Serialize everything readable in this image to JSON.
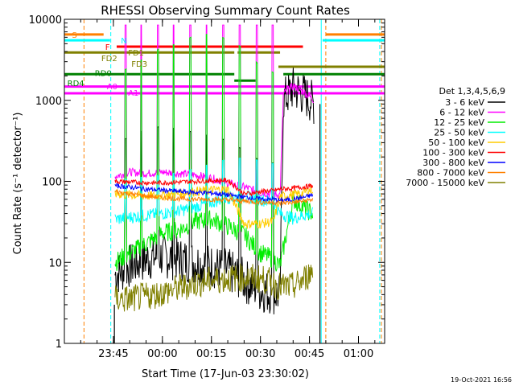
{
  "chart_data": {
    "type": "line",
    "title": "RHESSI Observing Summary Count Rates",
    "xlabel": "Start Time (17-Jun-03 23:30:02)",
    "ylabel": "Count Rate (s⁻¹ detector⁻¹)",
    "y_scale": "log",
    "x_unit": "minutes after 23:30:02",
    "xlim": [
      0,
      98
    ],
    "ylim": [
      1,
      10000
    ],
    "x_ticks": [
      {
        "t": 15,
        "label": "23:45"
      },
      {
        "t": 30,
        "label": "00:00"
      },
      {
        "t": 45,
        "label": "00:15"
      },
      {
        "t": 60,
        "label": "00:30"
      },
      {
        "t": 75,
        "label": "00:45"
      },
      {
        "t": 90,
        "label": "01:00"
      }
    ],
    "y_ticks": [
      {
        "v": 1,
        "label": "1"
      },
      {
        "v": 10,
        "label": "10"
      },
      {
        "v": 100,
        "label": "100"
      },
      {
        "v": 1000,
        "label": "1000"
      },
      {
        "v": 10000,
        "label": "10000"
      }
    ],
    "legend_title": "Det 1,3,4,5,6,9",
    "legend_position": "right",
    "series": [
      {
        "name": "3 - 6 keV",
        "color": "#000000",
        "x": [
          15.5,
          20,
          25,
          30,
          35,
          40,
          45,
          50,
          55,
          58,
          60,
          64,
          66,
          67,
          70,
          73,
          76.5
        ],
        "y": [
          7,
          9,
          11,
          12,
          11,
          10,
          9,
          8,
          6,
          5,
          4.5,
          4.2,
          4,
          1000,
          1400,
          1200,
          900
        ]
      },
      {
        "name": "6 - 12 keV",
        "color": "#ff00ff",
        "x": [
          15.5,
          20,
          25,
          30,
          35,
          40,
          45,
          50,
          55,
          58,
          60,
          64,
          66,
          67,
          70,
          73,
          76.5
        ],
        "y": [
          115,
          130,
          125,
          130,
          125,
          120,
          110,
          95,
          85,
          78,
          72,
          70,
          68,
          1200,
          1500,
          1300,
          1000
        ]
      },
      {
        "name": "12 - 25 keV",
        "color": "#00ee00",
        "x": [
          15.5,
          20,
          25,
          30,
          35,
          40,
          45,
          50,
          55,
          58,
          60,
          64,
          66,
          70,
          73,
          76
        ],
        "y": [
          10,
          13,
          17,
          23,
          25,
          32,
          34,
          28,
          22,
          16,
          13,
          11,
          9,
          60,
          48,
          40
        ]
      },
      {
        "name": "25 - 50 keV",
        "color": "#00ffff",
        "x": [
          15.5,
          20,
          25,
          30,
          35,
          40,
          45,
          50,
          55,
          58,
          60,
          64,
          66,
          70,
          73,
          76
        ],
        "y": [
          34,
          36,
          38,
          40,
          43,
          48,
          55,
          63,
          65,
          62,
          60,
          55,
          40,
          35,
          38,
          40
        ]
      },
      {
        "name": "50 - 100 keV",
        "color": "#ffcc00",
        "x": [
          15.5,
          20,
          25,
          30,
          35,
          40,
          45,
          50,
          55,
          58,
          60,
          64,
          66,
          70,
          73,
          76
        ],
        "y": [
          70,
          68,
          66,
          67,
          70,
          75,
          78,
          80,
          30,
          30,
          30,
          32,
          65,
          68,
          72,
          80
        ]
      },
      {
        "name": "100 - 300 keV",
        "color": "#ff0000",
        "x": [
          15.5,
          20,
          25,
          30,
          35,
          40,
          45,
          50,
          55,
          58,
          60,
          64,
          66,
          70,
          73,
          76
        ],
        "y": [
          100,
          98,
          96,
          96,
          98,
          100,
          102,
          103,
          70,
          72,
          75,
          77,
          80,
          82,
          85,
          88
        ]
      },
      {
        "name": "300 - 800 keV",
        "color": "#0000ff",
        "x": [
          15.5,
          20,
          25,
          30,
          35,
          40,
          45,
          50,
          55,
          58,
          60,
          64,
          66,
          70,
          73,
          76
        ],
        "y": [
          88,
          85,
          80,
          78,
          75,
          73,
          72,
          68,
          64,
          62,
          60,
          60,
          58,
          60,
          63,
          68
        ]
      },
      {
        "name": "800 - 7000 keV",
        "color": "#ff8000",
        "x": [
          15.5,
          20,
          25,
          30,
          35,
          40,
          45,
          50,
          55,
          58,
          60,
          64,
          66,
          70,
          73,
          76
        ],
        "y": [
          75,
          70,
          66,
          63,
          61,
          60,
          60,
          59,
          57,
          56,
          55,
          55,
          54,
          55,
          57,
          60
        ]
      },
      {
        "name": "7000 - 15000 keV",
        "color": "#808000",
        "x": [
          15.5,
          20,
          25,
          30,
          35,
          40,
          45,
          50,
          55,
          58,
          60,
          64,
          66,
          70,
          73,
          76
        ],
        "y": [
          3.5,
          3.5,
          3.8,
          4.2,
          4.8,
          5.5,
          6,
          6.3,
          6.5,
          6.4,
          6.3,
          5.5,
          5,
          5,
          6,
          8
        ]
      }
    ],
    "spike_times": [
      18.7,
      23.5,
      28.7,
      33.4,
      38.6,
      43.5,
      48.6,
      53.7,
      58.9,
      63.8
    ],
    "state_bars": [
      {
        "label": "S",
        "color": "#ff8000",
        "segments": [
          [
            0,
            12
          ],
          [
            80,
            98
          ]
        ],
        "y": 6500
      },
      {
        "label": "N",
        "color": "#00ffff",
        "segments": [
          [
            0,
            14
          ],
          [
            79,
            98
          ]
        ],
        "y": 5500
      },
      {
        "label": "F",
        "color": "#ff0000",
        "segments": [
          [
            16,
            73
          ]
        ],
        "y": 4600
      },
      {
        "label": "FD1",
        "color": "#808000",
        "segments": [
          [
            0,
            52
          ],
          [
            53,
            66
          ]
        ],
        "y": 3900
      },
      {
        "label": "FD2",
        "color": "#808000",
        "segments": [],
        "y": 3600
      },
      {
        "label": "FD3",
        "color": "#808000",
        "segments": [
          [
            65.5,
            98
          ]
        ],
        "y": 2600
      },
      {
        "label": "RD0",
        "color": "#008000",
        "segments": [
          [
            0,
            52
          ],
          [
            67,
            98
          ]
        ],
        "y": 2100
      },
      {
        "label": "RD4",
        "color": "#008000",
        "segments": [
          [
            52,
            58.5
          ]
        ],
        "y": 1750
      },
      {
        "label": "A0",
        "color": "#ff00ff",
        "segments": [
          [
            0,
            98
          ]
        ],
        "y": 1480
      },
      {
        "label": "A1",
        "color": "#ff00ff",
        "segments": [
          [
            0,
            98
          ]
        ],
        "y": 1220
      }
    ],
    "vertical_markers": [
      {
        "t": 6,
        "color": "#ff8000",
        "style": "dashed"
      },
      {
        "t": 14.2,
        "color": "#00ffff",
        "style": "dashed"
      },
      {
        "t": 78.6,
        "color": "#00ffff",
        "style": "solid"
      },
      {
        "t": 80,
        "color": "#ff8000",
        "style": "dashed"
      },
      {
        "t": 96.5,
        "color": "#00ffff",
        "style": "dashed"
      },
      {
        "t": 97,
        "color": "#ff8000",
        "style": "dashed"
      }
    ],
    "timestamp": "19-Oct-2021 16:56"
  }
}
